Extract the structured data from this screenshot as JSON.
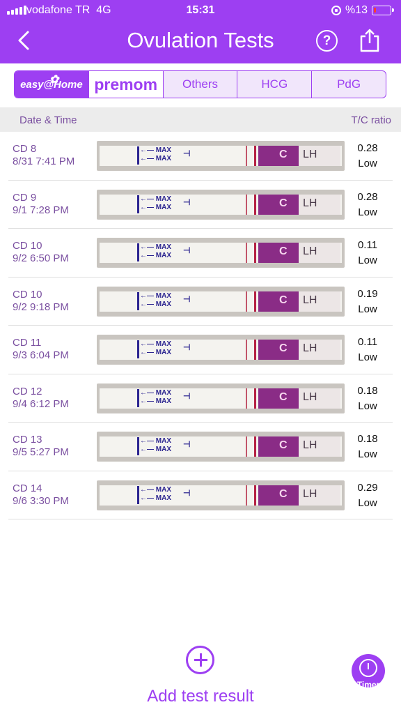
{
  "status_bar": {
    "carrier": "vodafone TR",
    "network": "4G",
    "time": "15:31",
    "battery": "%13",
    "battery_level": 0.13
  },
  "header": {
    "title": "Ovulation Tests",
    "help_label": "?"
  },
  "brands": {
    "items": [
      {
        "label": "easy@Home",
        "selected": true
      },
      {
        "label": "premom",
        "selected": false
      },
      {
        "label": "Others",
        "selected": false
      },
      {
        "label": "HCG",
        "selected": false
      },
      {
        "label": "PdG",
        "selected": false
      }
    ]
  },
  "columns": {
    "date_time": "Date & Time",
    "ratio": "T/C ratio"
  },
  "tests": [
    {
      "cd": "CD 8",
      "datetime": "8/31 7:41 PM",
      "ratio": "0.28",
      "level": "Low"
    },
    {
      "cd": "CD 9",
      "datetime": "9/1 7:28 PM",
      "ratio": "0.28",
      "level": "Low"
    },
    {
      "cd": "CD 10",
      "datetime": "9/2 6:50 PM",
      "ratio": "0.11",
      "level": "Low"
    },
    {
      "cd": "CD 10",
      "datetime": "9/2 9:18 PM",
      "ratio": "0.19",
      "level": "Low"
    },
    {
      "cd": "CD 11",
      "datetime": "9/3 6:04 PM",
      "ratio": "0.11",
      "level": "Low"
    },
    {
      "cd": "CD 12",
      "datetime": "9/4 6:12 PM",
      "ratio": "0.18",
      "level": "Low"
    },
    {
      "cd": "CD 13",
      "datetime": "9/5 5:27 PM",
      "ratio": "0.18",
      "level": "Low"
    },
    {
      "cd": "CD 14",
      "datetime": "9/6 3:30 PM",
      "ratio": "0.29",
      "level": "Low"
    }
  ],
  "strip_text": {
    "max": "MAX",
    "control": "C",
    "lh": "LH"
  },
  "footer": {
    "add_label": "Add test result",
    "timer_label": "Timer"
  },
  "colors": {
    "accent": "#9d3ff2",
    "text_purple": "#7a4fa0"
  },
  "icons": {
    "back": "chevron-left-icon",
    "help": "question-circle-icon",
    "share": "share-icon",
    "add": "plus-circle-icon",
    "timer": "stopwatch-icon"
  }
}
